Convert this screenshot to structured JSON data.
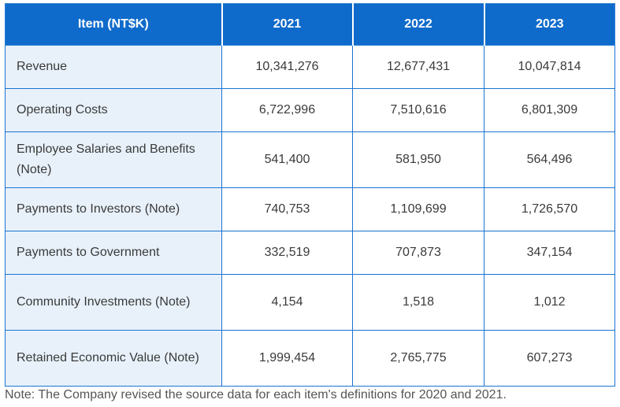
{
  "table": {
    "headers": [
      "Item (NT$K)",
      "2021",
      "2022",
      "2023"
    ],
    "rows": [
      {
        "label": "Revenue",
        "values": [
          "10,341,276",
          "12,677,431",
          "10,047,814"
        ]
      },
      {
        "label": "Operating Costs",
        "values": [
          "6,722,996",
          "7,510,616",
          "6,801,309"
        ]
      },
      {
        "label": "Employee Salaries and Benefits (Note)",
        "values": [
          "541,400",
          "581,950",
          "564,496"
        ]
      },
      {
        "label": "Payments to Investors (Note)",
        "values": [
          "740,753",
          "1,109,699",
          "1,726,570"
        ]
      },
      {
        "label": "Payments to Government",
        "values": [
          "332,519",
          "707,873",
          "347,154"
        ]
      },
      {
        "label": "Community Investments (Note)",
        "values": [
          "4,154",
          "1,518",
          "1,012"
        ]
      },
      {
        "label": "Retained Economic Value (Note)",
        "values": [
          "1,999,454",
          "2,765,775",
          "607,273"
        ]
      }
    ]
  },
  "note": "Note: The Company revised the source data for each item's definitions for 2020 and 2021.",
  "colors": {
    "header_bg": "#0f6bcb",
    "label_bg": "#e8f1fa",
    "border": "#1a73d1"
  }
}
